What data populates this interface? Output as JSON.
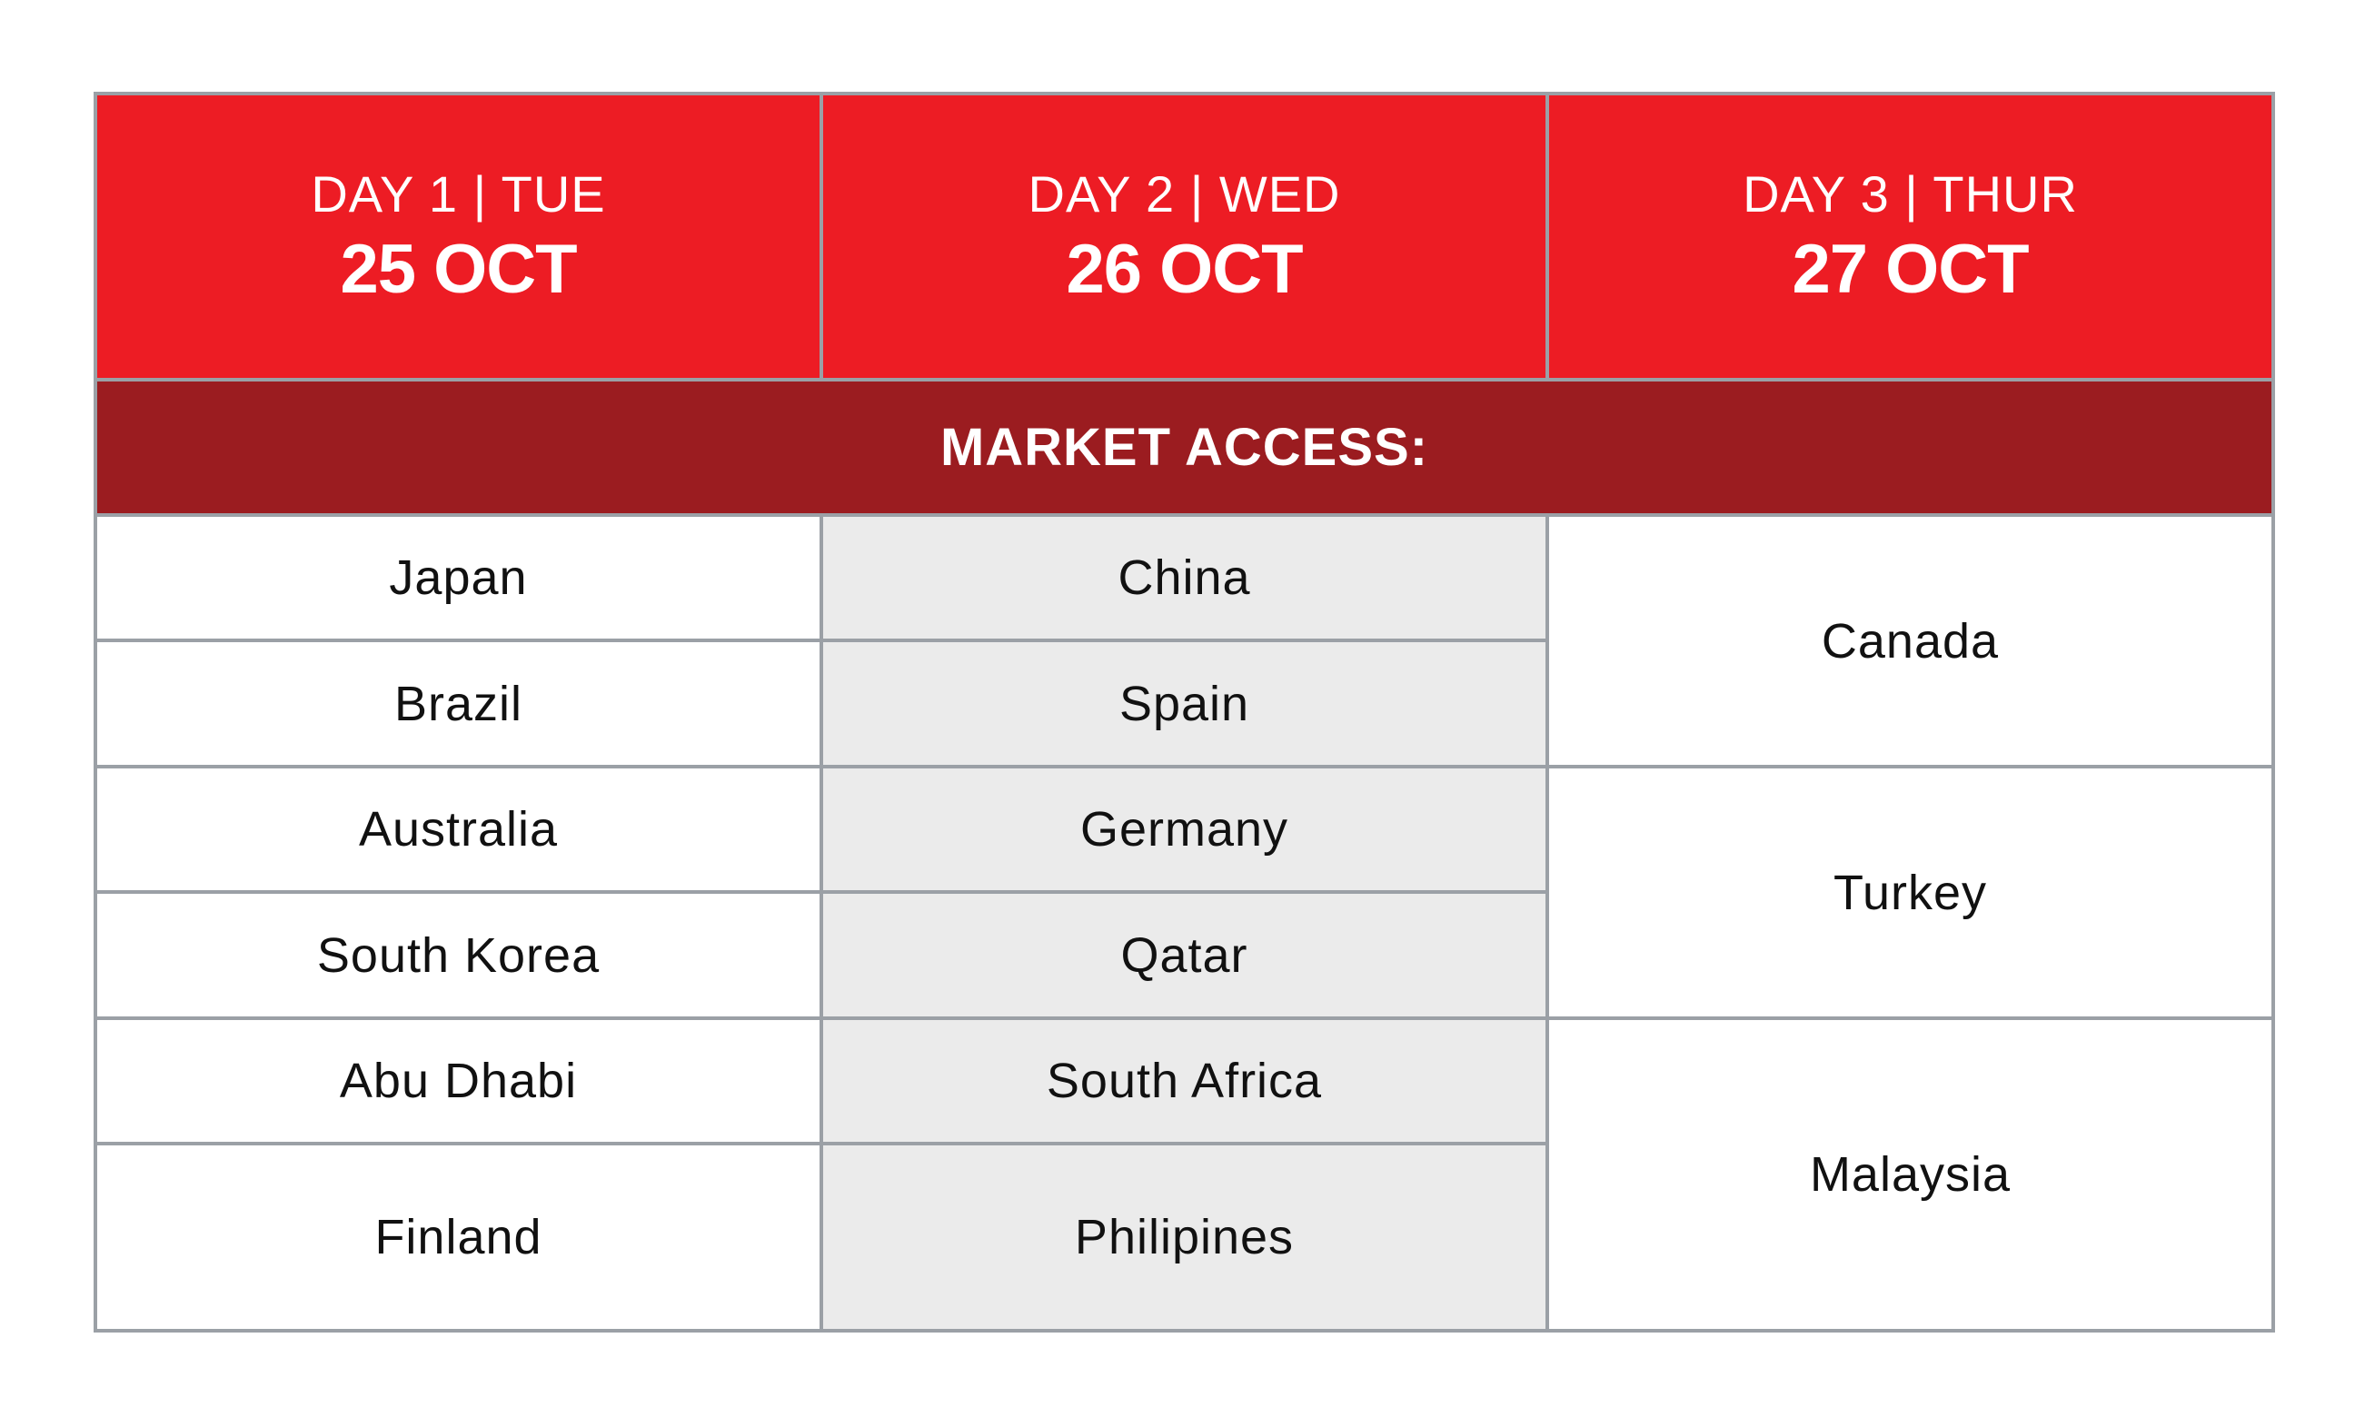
{
  "header": [
    {
      "day": "DAY 1 | TUE",
      "date": "25 OCT"
    },
    {
      "day": "DAY 2 | WED",
      "date": "26 OCT"
    },
    {
      "day": "DAY 3 | THUR",
      "date": "27 OCT"
    }
  ],
  "banner": "MARKET ACCESS:",
  "day1": [
    "Japan",
    "Brazil",
    "Australia",
    "South Korea",
    "Abu Dhabi",
    "Finland"
  ],
  "day2": [
    "China",
    "Spain",
    "Germany",
    "Qatar",
    "South Africa",
    "Philipines"
  ],
  "day3": [
    "Canada",
    "Turkey",
    "Malaysia"
  ],
  "colors": {
    "header_red": "#ed1c24",
    "banner_red": "#9b1c20",
    "alt_gray": "#ebebeb",
    "border_gray": "#9ba0a6"
  }
}
